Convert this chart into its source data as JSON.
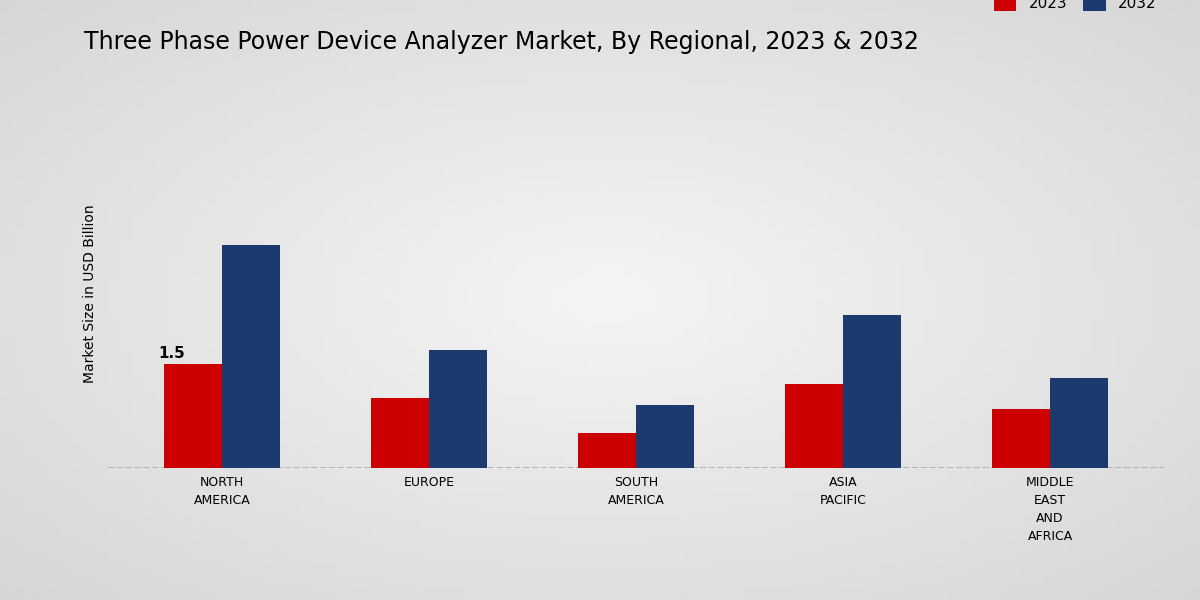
{
  "title": "Three Phase Power Device Analyzer Market, By Regional, 2023 & 2032",
  "ylabel": "Market Size in USD Billion",
  "categories": [
    "NORTH\nAMERICA",
    "EUROPE",
    "SOUTH\nAMERICA",
    "ASIA\nPACIFIC",
    "MIDDLE\nEAST\nAND\nAFRICA"
  ],
  "values_2023": [
    1.5,
    1.0,
    0.5,
    1.2,
    0.85
  ],
  "values_2032": [
    3.2,
    1.7,
    0.9,
    2.2,
    1.3
  ],
  "color_2023": "#cc0000",
  "color_2032": "#1c3a6e",
  "annotation_text": "1.5",
  "bar_width": 0.28,
  "ylim": [
    0,
    5.0
  ],
  "title_fontsize": 17,
  "ylabel_fontsize": 10,
  "tick_fontsize": 9,
  "legend_fontsize": 11,
  "bg_color_light": "#f0f0f0",
  "bg_color_dark": "#d0d0d0",
  "dashed_color": "#aaaaaa",
  "red_bar_color": "#cc0000"
}
